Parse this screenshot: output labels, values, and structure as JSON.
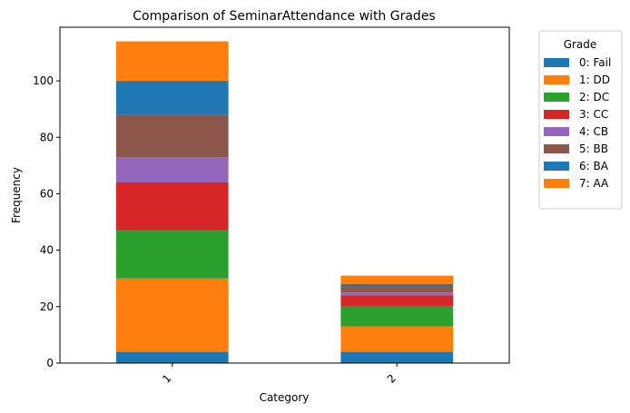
{
  "chart_data": {
    "type": "bar",
    "stacked": true,
    "title": "Comparison of SeminarAttendance with Grades",
    "xlabel": "Category",
    "ylabel": "Frequency",
    "categories": [
      "1",
      "2"
    ],
    "ylim": [
      0,
      119
    ],
    "yticks": [
      0,
      20,
      40,
      60,
      80,
      100
    ],
    "grid": false,
    "legend": {
      "title": "Grade",
      "placement": "outside-top-right"
    },
    "series": [
      {
        "name": "0: Fail",
        "color": "#1f77b4",
        "values": [
          4,
          4
        ]
      },
      {
        "name": "1: DD",
        "color": "#ff7f0e",
        "values": [
          26,
          9
        ]
      },
      {
        "name": "2: DC",
        "color": "#2ca02c",
        "values": [
          17,
          7
        ]
      },
      {
        "name": "3: CC",
        "color": "#d62728",
        "values": [
          17,
          4
        ]
      },
      {
        "name": "4: CB",
        "color": "#9467bd",
        "values": [
          9,
          1
        ]
      },
      {
        "name": "5: BB",
        "color": "#8c564b",
        "values": [
          15,
          2
        ]
      },
      {
        "name": "6: BA",
        "color": "#1f77b4",
        "values": [
          12,
          1
        ]
      },
      {
        "name": "7: AA",
        "color": "#ff7f0e",
        "values": [
          14,
          3
        ]
      }
    ]
  }
}
